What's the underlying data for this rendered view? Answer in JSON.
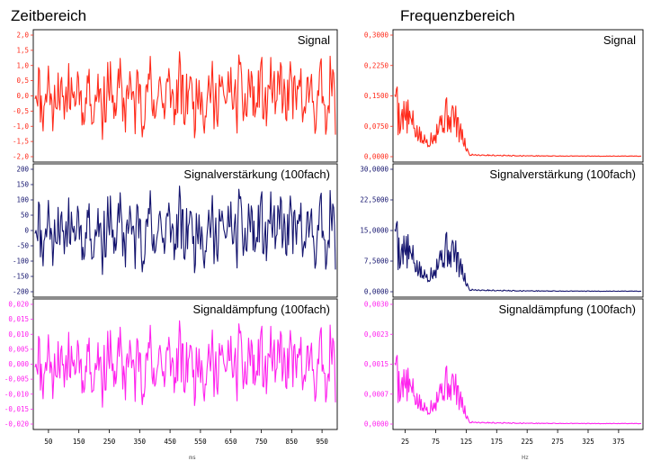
{
  "headings": {
    "left": "Zeitbereich",
    "right": "Frequenzbereich"
  },
  "chart_data": [
    {
      "type": "line",
      "domain": "time",
      "title": "Signal",
      "color": "#ff2a1a",
      "ylim": [
        -2.0,
        2.0
      ],
      "yticks": [
        "2,0",
        "1,5",
        "1,0",
        "0,5",
        "0,0",
        "-0,5",
        "-1,0",
        "-1,5",
        "-2,0"
      ],
      "amplitude": 1.45,
      "seed": 11
    },
    {
      "type": "line",
      "domain": "time",
      "title": "Signalverstärkung (100fach)",
      "color": "#14146e",
      "ylim": [
        -200,
        200
      ],
      "yticks": [
        "200",
        "150",
        "100",
        "50",
        "0",
        "-50",
        "-100",
        "-150",
        "-200"
      ],
      "amplitude": 145,
      "seed": 11
    },
    {
      "type": "line",
      "domain": "time",
      "title": "Signaldämpfung (100fach)",
      "color": "#ff22ee",
      "ylim": [
        -0.02,
        0.02
      ],
      "yticks": [
        "0,020",
        "0,015",
        "0,010",
        "0,005",
        "0,000",
        "-0,005",
        "-0,010",
        "-0,015",
        "-0,020"
      ],
      "amplitude": 0.0145,
      "seed": 11
    },
    {
      "type": "line",
      "domain": "frequency",
      "title": "Signal",
      "color": "#ff2a1a",
      "ylim": [
        0,
        0.3
      ],
      "yticks": [
        "0,3000",
        "0,2250",
        "0,1500",
        "0,0750",
        "0,0000"
      ],
      "peak": 0.19,
      "seed": 5
    },
    {
      "type": "line",
      "domain": "frequency",
      "title": "Signalverstärkung (100fach)",
      "color": "#14146e",
      "ylim": [
        0,
        30
      ],
      "yticks": [
        "30,0000",
        "22,5000",
        "15,0000",
        "7,5000",
        "0,0000"
      ],
      "peak": 19,
      "seed": 5
    },
    {
      "type": "line",
      "domain": "frequency",
      "title": "Signaldämpfung (100fach)",
      "color": "#ff22ee",
      "ylim": [
        0,
        0.003
      ],
      "yticks": [
        "0,0030",
        "0,0023",
        "0,0015",
        "0,0007",
        "0,0000"
      ],
      "peak": 0.0019,
      "seed": 5
    }
  ],
  "x_axis_time": {
    "ticks": [
      "50",
      "150",
      "250",
      "350",
      "450",
      "550",
      "650",
      "750",
      "850",
      "950"
    ],
    "values": [
      50,
      150,
      250,
      350,
      450,
      550,
      650,
      750,
      850,
      950
    ],
    "range": [
      0,
      1000
    ],
    "unit": "ms"
  },
  "x_axis_freq": {
    "ticks": [
      "25",
      "75",
      "125",
      "175",
      "225",
      "275",
      "325",
      "375"
    ],
    "values": [
      25,
      75,
      125,
      175,
      225,
      275,
      325,
      375
    ],
    "range": [
      5,
      415
    ],
    "unit": "Hz"
  }
}
